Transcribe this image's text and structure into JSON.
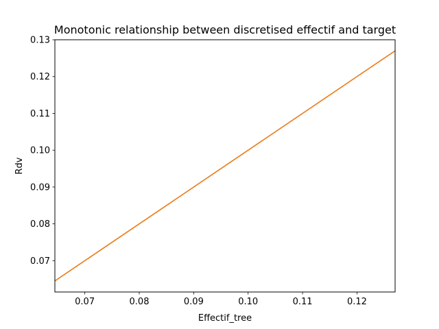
{
  "chart_data": {
    "type": "line",
    "title": "Monotonic relationship between discretised effectif and target",
    "xlabel": "Effectif_tree",
    "ylabel": "Rdv",
    "xlim": [
      0.0645,
      0.127
    ],
    "ylim": [
      0.0615,
      0.13
    ],
    "xticks": [
      0.07,
      0.08,
      0.09,
      0.1,
      0.11,
      0.12
    ],
    "xtick_labels": [
      "0.07",
      "0.08",
      "0.09",
      "0.10",
      "0.11",
      "0.12"
    ],
    "yticks": [
      0.07,
      0.08,
      0.09,
      0.1,
      0.11,
      0.12,
      0.13
    ],
    "ytick_labels": [
      "0.07",
      "0.08",
      "0.09",
      "0.10",
      "0.11",
      "0.12",
      "0.13"
    ],
    "grid": false,
    "series": [
      {
        "color": "#1f77b4",
        "x": [
          0.0645,
          0.127
        ],
        "y": [
          0.0645,
          0.127
        ]
      },
      {
        "color": "#ff7f0e",
        "x": [
          0.0645,
          0.127
        ],
        "y": [
          0.0645,
          0.127
        ]
      }
    ]
  }
}
